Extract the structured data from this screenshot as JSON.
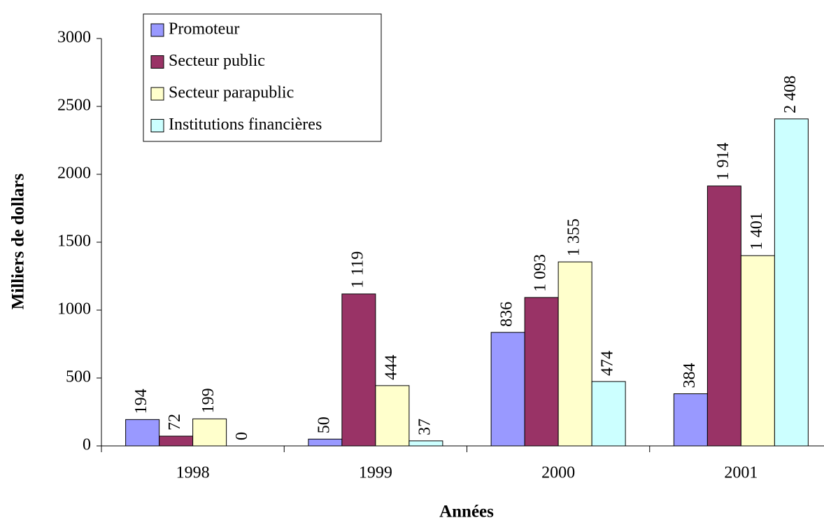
{
  "chart_data": {
    "type": "bar",
    "categories": [
      "1998",
      "1999",
      "2000",
      "2001"
    ],
    "series": [
      {
        "name": "Promoteur",
        "color": "#9999ff",
        "values": [
          194,
          50,
          836,
          384
        ],
        "value_labels": [
          "194",
          "50",
          "836",
          "384"
        ]
      },
      {
        "name": "Secteur public",
        "color": "#993366",
        "values": [
          72,
          1119,
          1093,
          1914
        ],
        "value_labels": [
          "72",
          "1 119",
          "1 093",
          "1 914"
        ]
      },
      {
        "name": "Secteur parapublic",
        "color": "#ffffcc",
        "values": [
          199,
          444,
          1355,
          1401
        ],
        "value_labels": [
          "199",
          "444",
          "1 355",
          "1 401"
        ]
      },
      {
        "name": "Institutions financières",
        "color": "#ccffff",
        "values": [
          0,
          37,
          474,
          2408
        ],
        "value_labels": [
          "0",
          "37",
          "474",
          "2 408"
        ]
      }
    ],
    "x_label": "Années",
    "y_label": "Milliers de dollars",
    "ylim": [
      0,
      3000
    ],
    "yticks": [
      0,
      500,
      1000,
      1500,
      2000,
      2500,
      3000
    ],
    "grid": false,
    "legend": "top-left"
  }
}
